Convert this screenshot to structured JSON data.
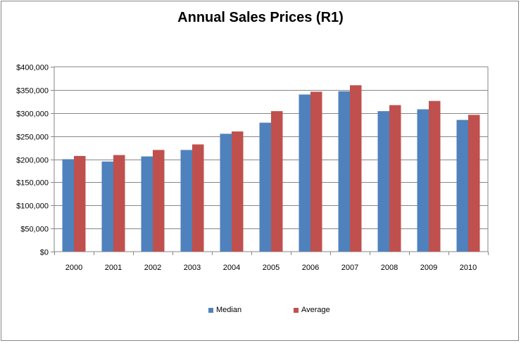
{
  "chart_data": {
    "type": "bar",
    "title": "Annual Sales Prices (R1)",
    "xlabel": "",
    "ylabel": "",
    "categories": [
      "2000",
      "2001",
      "2002",
      "2003",
      "2004",
      "2005",
      "2006",
      "2007",
      "2008",
      "2009",
      "2010"
    ],
    "series": [
      {
        "name": "Median",
        "color": "#4F81BD",
        "values": [
          200000,
          195000,
          206000,
          220000,
          255000,
          279000,
          340000,
          347000,
          304000,
          308000,
          285000
        ]
      },
      {
        "name": "Average",
        "color": "#C0504D",
        "values": [
          207000,
          209000,
          220000,
          232000,
          260000,
          304000,
          346000,
          360000,
          317000,
          326000,
          296000
        ]
      }
    ],
    "ylim": [
      0,
      400000
    ],
    "yticks": [
      0,
      50000,
      100000,
      150000,
      200000,
      250000,
      300000,
      350000,
      400000
    ],
    "ytick_labels": [
      "$0",
      "$50,000",
      "$100,000",
      "$150,000",
      "$200,000",
      "$250,000",
      "$300,000",
      "$350,000",
      "$400,000"
    ],
    "grid": true,
    "legend_position": "bottom"
  }
}
